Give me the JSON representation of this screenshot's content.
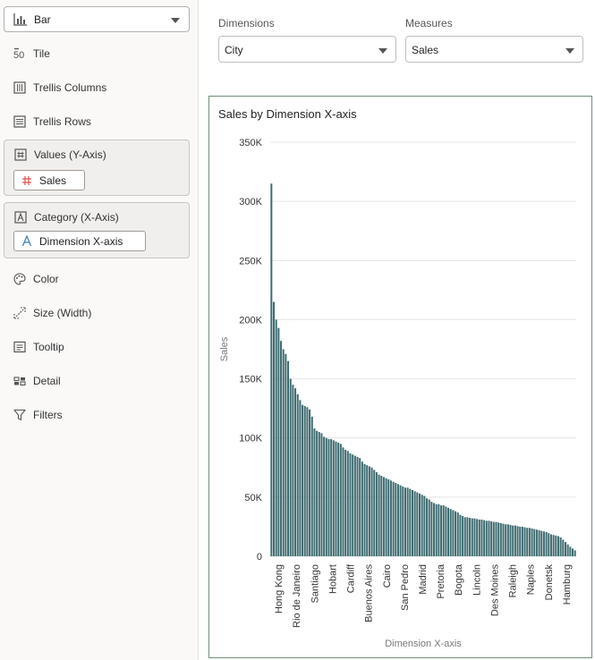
{
  "sidebar": {
    "viz_type": "Bar",
    "items": [
      {
        "label": "Tile",
        "icon": "tile-icon"
      },
      {
        "label": "Trellis Columns",
        "icon": "trellis-columns-icon"
      },
      {
        "label": "Trellis Rows",
        "icon": "trellis-rows-icon"
      }
    ],
    "values_box": {
      "label": "Values (Y-Axis)",
      "icon": "hash-icon",
      "pill": "Sales",
      "pill_icon": "hash-icon"
    },
    "category_box": {
      "label": "Category (X-Axis)",
      "icon": "attribute-icon",
      "pill": "Dimension X-axis",
      "pill_icon": "text-attribute-icon"
    },
    "more_items": [
      {
        "label": "Color",
        "icon": "palette-icon"
      },
      {
        "label": "Size (Width)",
        "icon": "size-icon"
      },
      {
        "label": "Tooltip",
        "icon": "tooltip-icon"
      },
      {
        "label": "Detail",
        "icon": "detail-icon"
      },
      {
        "label": "Filters",
        "icon": "filter-icon"
      }
    ]
  },
  "controls": {
    "dimensions_label": "Dimensions",
    "dimensions_value": "City",
    "measures_label": "Measures",
    "measures_value": "Sales"
  },
  "colors": {
    "bar": "#3e6b70",
    "accent_border": "#6f8f78"
  },
  "chart_data": {
    "type": "bar",
    "title": "Sales by Dimension X-axis",
    "xlabel": "Dimension X-axis",
    "ylabel": "Sales",
    "ylim": [
      0,
      350000
    ],
    "yticks": [
      "0",
      "50K",
      "100K",
      "150K",
      "200K",
      "250K",
      "300K",
      "350K"
    ],
    "grid": true,
    "bar_color": "#3e6b70",
    "labeled_categories": [
      "Hong Kong",
      "Rio de Janeiro",
      "Santiago",
      "Hobart",
      "Cardiff",
      "Buenos Aires",
      "Cairo",
      "San Pedro",
      "Madrid",
      "Pretoria",
      "Bogota",
      "Lincoln",
      "Des Moines",
      "Raleigh",
      "Naples",
      "Donetsk",
      "Hamburg"
    ],
    "values": [
      315000,
      215000,
      200000,
      193000,
      182000,
      175000,
      171000,
      165000,
      150000,
      145000,
      142000,
      137000,
      132000,
      128000,
      127000,
      126000,
      124000,
      118000,
      108000,
      106000,
      105000,
      104000,
      101000,
      100000,
      99000,
      99000,
      98000,
      97000,
      96000,
      95000,
      92000,
      90000,
      89000,
      87000,
      86000,
      85000,
      84000,
      83000,
      80000,
      78000,
      77000,
      76000,
      75000,
      73000,
      71000,
      69000,
      68000,
      67000,
      66000,
      65000,
      64000,
      63000,
      62000,
      61000,
      60000,
      59000,
      58000,
      58000,
      57000,
      56000,
      55000,
      54000,
      53000,
      52000,
      51000,
      49000,
      48000,
      46000,
      45000,
      44000,
      44000,
      43000,
      43000,
      42000,
      41000,
      40000,
      39000,
      38000,
      37000,
      35000,
      34000,
      33000,
      33000,
      32500,
      32000,
      32000,
      31500,
      31000,
      31000,
      30500,
      30000,
      30000,
      29500,
      29000,
      29000,
      28500,
      28000,
      27500,
      27000,
      27000,
      26500,
      26000,
      26000,
      25500,
      25000,
      25000,
      24500,
      24000,
      24000,
      23500,
      23000,
      22500,
      22000,
      21500,
      21000,
      20500,
      19500,
      18500,
      18000,
      17500,
      17000,
      16000,
      14000,
      12000,
      10000,
      8000,
      6500,
      5000
    ]
  }
}
